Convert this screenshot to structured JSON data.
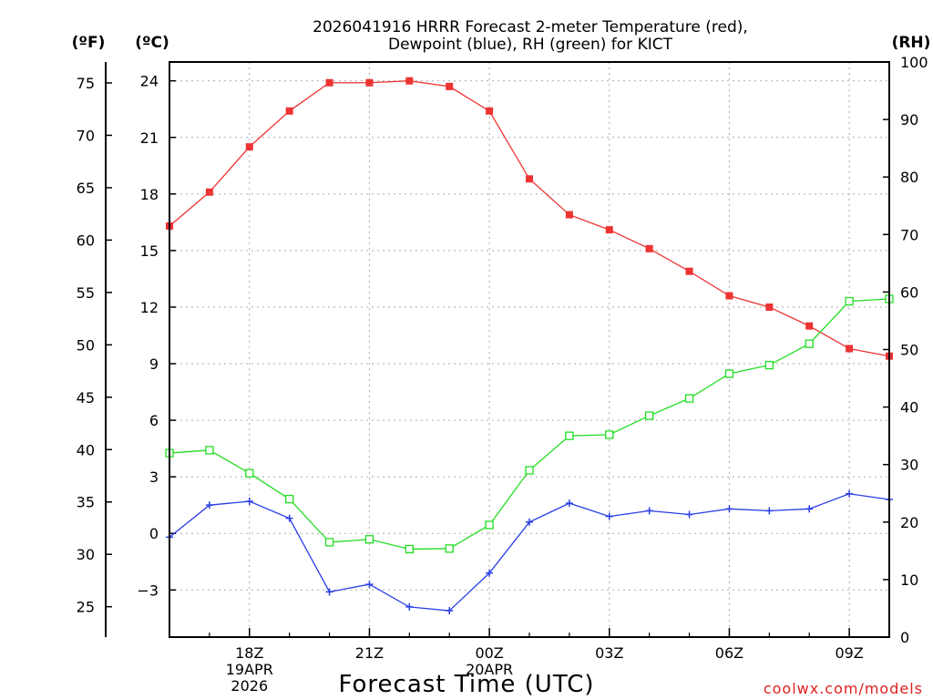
{
  "chart_data": {
    "type": "line",
    "title_line1": "2026041916 HRRR Forecast 2-meter Temperature (red),",
    "title_line2": "Dewpoint (blue), RH (green) for KICT",
    "xlabel": "Forecast Time (UTC)",
    "credit": "coolwx.com/models",
    "units": {
      "f": "(ºF)",
      "c": "(ºC)",
      "rh": "(RH)"
    },
    "x_hours": [
      16,
      17,
      18,
      19,
      20,
      21,
      22,
      23,
      24,
      25,
      26,
      27,
      28,
      29,
      30,
      31,
      32,
      33,
      34
    ],
    "xlim": [
      16,
      34
    ],
    "x_ticks": [
      {
        "hour": 18,
        "lines": [
          "18Z",
          "19APR",
          "2026"
        ]
      },
      {
        "hour": 21,
        "lines": [
          "21Z"
        ]
      },
      {
        "hour": 24,
        "lines": [
          "00Z",
          "20APR"
        ]
      },
      {
        "hour": 27,
        "lines": [
          "03Z"
        ]
      },
      {
        "hour": 30,
        "lines": [
          "06Z"
        ]
      },
      {
        "hour": 33,
        "lines": [
          "09Z"
        ]
      }
    ],
    "c_axis": {
      "ylim": [
        -5.5,
        25
      ],
      "ticks": [
        24,
        21,
        18,
        15,
        12,
        9,
        6,
        3,
        0,
        -3
      ],
      "tick_labels": [
        "24",
        "21",
        "18",
        "15",
        "12",
        "9",
        "6",
        "3",
        "0",
        "−3"
      ]
    },
    "f_axis": {
      "ticks": [
        75,
        70,
        65,
        60,
        55,
        50,
        45,
        40,
        35,
        30,
        25
      ],
      "tick_labels": [
        "75",
        "70",
        "65",
        "60",
        "55",
        "50",
        "45",
        "40",
        "35",
        "30",
        "25"
      ]
    },
    "rh_axis": {
      "ylim": [
        0,
        100
      ],
      "ticks": [
        100,
        90,
        80,
        70,
        60,
        50,
        40,
        30,
        20,
        10,
        0
      ],
      "tick_labels": [
        "100",
        "90",
        "80",
        "70",
        "60",
        "50",
        "40",
        "30",
        "20",
        "10",
        "0"
      ]
    },
    "series": [
      {
        "name": "Temperature",
        "axis": "c",
        "color": "#ee3333",
        "marker": "filled-square",
        "values": [
          16.3,
          18.1,
          20.5,
          22.4,
          23.9,
          23.9,
          24.0,
          23.7,
          22.4,
          18.8,
          16.9,
          16.1,
          15.1,
          13.9,
          12.6,
          12.0,
          11.0,
          9.8,
          9.4
        ]
      },
      {
        "name": "Dewpoint",
        "axis": "c",
        "color": "#2a3ee6",
        "marker": "plus",
        "values": [
          -0.2,
          1.5,
          1.7,
          0.8,
          -3.1,
          -2.7,
          -3.9,
          -4.1,
          -2.1,
          0.6,
          1.6,
          0.9,
          1.2,
          1.0,
          1.3,
          1.2,
          1.3,
          2.1,
          1.8
        ]
      },
      {
        "name": "RH",
        "axis": "rh",
        "color": "#22dd22",
        "marker": "open-square",
        "values": [
          32,
          32.5,
          28.5,
          24,
          16.5,
          17,
          15.3,
          15.4,
          19.5,
          29,
          35,
          35.2,
          38.5,
          41.5,
          45.8,
          47.3,
          51,
          58.4,
          58.8
        ]
      }
    ]
  }
}
